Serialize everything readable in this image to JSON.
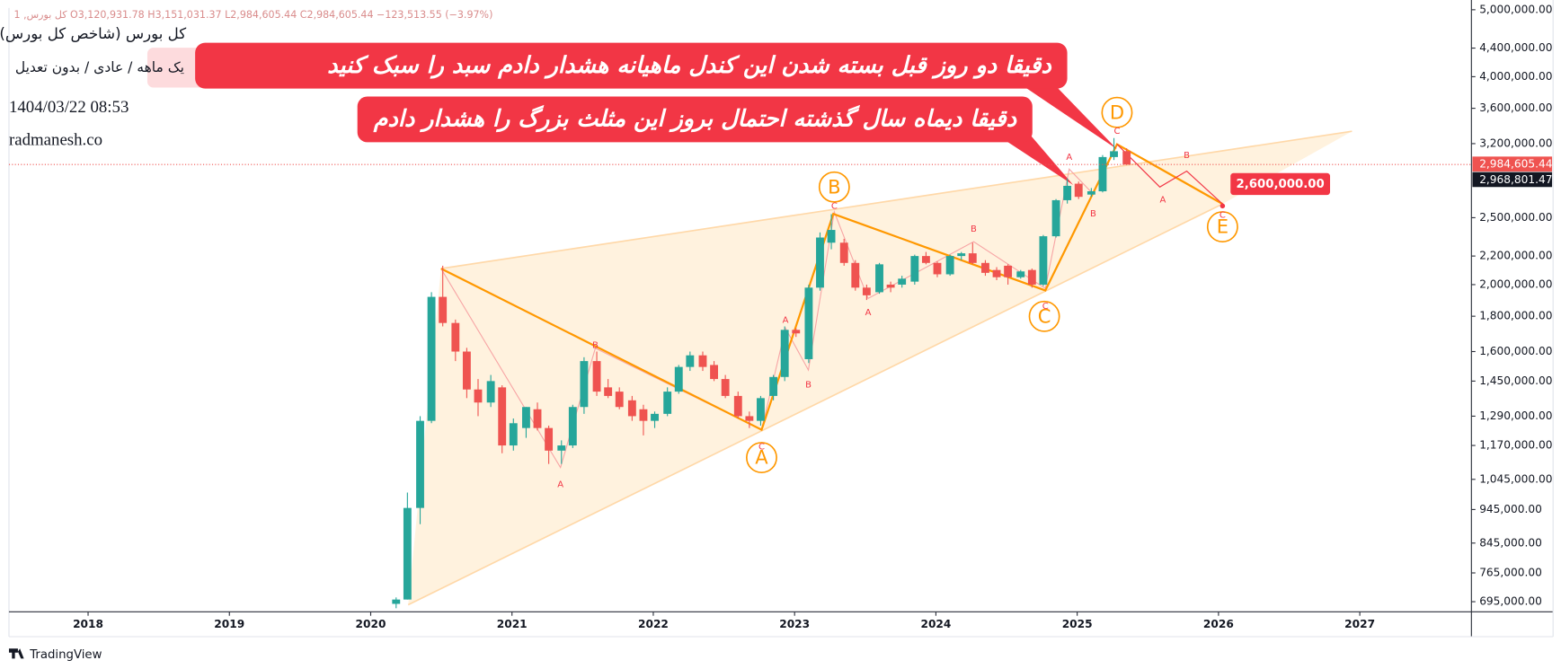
{
  "chart_data": {
    "type": "candlestick",
    "title": "کل بورس (شاخص کل بورس)",
    "subtitle": "یک ماهه / عادی / بدون تعدیل",
    "timestamp": "1404/03/22 08:53",
    "watermark": "radmanesh.co",
    "ohlc_line": "کل بورس, 1  O3,120,931.78  H3,151,031.37  L2,984,605.44  C2,984,605.44  −123,513.55 (−3.97%)",
    "branding": "TradingView",
    "up_color": "#26a69a",
    "down_color": "#ef5350",
    "log_scale": true,
    "x": [
      2020.18,
      2020.26,
      2020.35,
      2020.43,
      2020.51,
      2020.6,
      2020.68,
      2020.76,
      2020.85,
      2020.93,
      2021.01,
      2021.1,
      2021.18,
      2021.26,
      2021.35,
      2021.43,
      2021.51,
      2021.6,
      2021.68,
      2021.76,
      2021.85,
      2021.93,
      2022.01,
      2022.1,
      2022.18,
      2022.26,
      2022.35,
      2022.43,
      2022.51,
      2022.6,
      2022.68,
      2022.76,
      2022.85,
      2022.93,
      2023.01,
      2023.1,
      2023.18,
      2023.26,
      2023.35,
      2023.43,
      2023.51,
      2023.6,
      2023.68,
      2023.76,
      2023.85,
      2023.93,
      2024.01,
      2024.1,
      2024.18,
      2024.26,
      2024.35,
      2024.43,
      2024.51,
      2024.6,
      2024.68,
      2024.76,
      2024.85,
      2024.93,
      2025.01,
      2025.1,
      2025.18,
      2025.26,
      2025.35
    ],
    "open": [
      690000,
      700000,
      950000,
      1270000,
      1920000,
      1760000,
      1600000,
      1410000,
      1350000,
      1420000,
      1170000,
      1240000,
      1320000,
      1240000,
      1150000,
      1170000,
      1330000,
      1550000,
      1420000,
      1400000,
      1360000,
      1320000,
      1270000,
      1300000,
      1400000,
      1520000,
      1580000,
      1530000,
      1460000,
      1380000,
      1290000,
      1270000,
      1380000,
      1470000,
      1720000,
      1560000,
      1980000,
      2300000,
      2300000,
      2150000,
      1980000,
      1950000,
      2000000,
      2000000,
      2020000,
      2200000,
      2150000,
      2070000,
      2200000,
      2220000,
      2150000,
      2100000,
      2130000,
      2050000,
      2100000,
      2000000,
      2350000,
      2650000,
      2800000,
      2700000,
      2730000,
      3060000,
      3120931.78
    ],
    "high": [
      705000,
      1000000,
      1290000,
      1950000,
      2130000,
      1780000,
      1620000,
      1460000,
      1480000,
      1430000,
      1280000,
      1330000,
      1350000,
      1250000,
      1190000,
      1340000,
      1570000,
      1600000,
      1460000,
      1420000,
      1380000,
      1340000,
      1310000,
      1420000,
      1530000,
      1600000,
      1600000,
      1550000,
      1480000,
      1400000,
      1310000,
      1380000,
      1480000,
      1740000,
      1730000,
      2000000,
      2380000,
      2530000,
      2330000,
      2170000,
      2000000,
      2150000,
      2020000,
      2060000,
      2210000,
      2230000,
      2160000,
      2210000,
      2230000,
      2300000,
      2170000,
      2120000,
      2140000,
      2100000,
      2110000,
      2360000,
      2660000,
      2850000,
      2820000,
      2760000,
      3080000,
      3260000,
      3151031.37
    ],
    "low": [
      680000,
      700000,
      900000,
      1260000,
      1740000,
      1550000,
      1370000,
      1290000,
      1330000,
      1140000,
      1150000,
      1200000,
      1230000,
      1100000,
      1100000,
      1160000,
      1300000,
      1380000,
      1370000,
      1320000,
      1270000,
      1210000,
      1240000,
      1290000,
      1390000,
      1500000,
      1500000,
      1450000,
      1370000,
      1280000,
      1240000,
      1250000,
      1360000,
      1450000,
      1680000,
      1540000,
      1960000,
      2250000,
      2130000,
      1960000,
      1900000,
      1940000,
      1950000,
      1980000,
      2000000,
      2140000,
      2050000,
      2060000,
      2170000,
      2140000,
      2060000,
      2030000,
      2000000,
      2040000,
      1980000,
      1990000,
      2340000,
      2620000,
      2660000,
      2680000,
      2720000,
      3030000,
      2984605.44
    ],
    "close": [
      700000,
      950000,
      1270000,
      1920000,
      1760000,
      1600000,
      1410000,
      1350000,
      1450000,
      1170000,
      1260000,
      1330000,
      1240000,
      1150000,
      1170000,
      1330000,
      1550000,
      1400000,
      1380000,
      1330000,
      1290000,
      1270000,
      1300000,
      1400000,
      1520000,
      1580000,
      1520000,
      1460000,
      1380000,
      1290000,
      1270000,
      1370000,
      1470000,
      1720000,
      1700000,
      1980000,
      2340000,
      2400000,
      2150000,
      1980000,
      1930000,
      2140000,
      1980000,
      2040000,
      2200000,
      2150000,
      2070000,
      2200000,
      2220000,
      2150000,
      2080000,
      2050000,
      2050000,
      2090000,
      2000000,
      2350000,
      2650000,
      2780000,
      2680000,
      2730000,
      3060000,
      3120000,
      2984605.44
    ],
    "xlim": [
      2017.44,
      2027.79
    ],
    "xticks": [
      2018,
      2019,
      2020,
      2021,
      2022,
      2023,
      2024,
      2025,
      2026,
      2027
    ],
    "ylim": [
      672000,
      5030000
    ],
    "yticks": [
      {
        "value": 5000000,
        "label": "5,000,000.00"
      },
      {
        "value": 4400000,
        "label": "4,400,000.00"
      },
      {
        "value": 4000000,
        "label": "4,000,000.00"
      },
      {
        "value": 3600000,
        "label": "3,600,000.00"
      },
      {
        "value": 3200000,
        "label": "3,200,000.00"
      },
      {
        "value": 2500000,
        "label": "2,500,000.00"
      },
      {
        "value": 2200000,
        "label": "2,200,000.00"
      },
      {
        "value": 2000000,
        "label": "2,000,000.00"
      },
      {
        "value": 1800000,
        "label": "1,800,000.00"
      },
      {
        "value": 1600000,
        "label": "1,600,000.00"
      },
      {
        "value": 1450000,
        "label": "1,450,000.00"
      },
      {
        "value": 1290000,
        "label": "1,290,000.00"
      },
      {
        "value": 1170000,
        "label": "1,170,000.00"
      },
      {
        "value": 1045000,
        "label": "1,045,000.00"
      },
      {
        "value": 945000,
        "label": "945,000.00"
      },
      {
        "value": 845000,
        "label": "845,000.00"
      },
      {
        "value": 765000,
        "label": "765,000.00"
      },
      {
        "value": 695000,
        "label": "695,000.00"
      }
    ],
    "price_tags": [
      {
        "value": 2984605.44,
        "label": "2,984,605.44"
      },
      {
        "value": 2968801.47,
        "label": "2,968,801.47"
      },
      {
        "value": 2600000,
        "label": "2,600,000.00"
      }
    ],
    "annotations": [
      "دقیقا دو روز قبل بسته شدن این کندل ماهیانه هشدار دادم سبد را سبک کنید",
      "دقیقا دیماه سال گذشته احتمال بروز این مثلث بزرگ را هشدار دادم"
    ],
    "wave_labels": [
      "A",
      "B",
      "C",
      "D",
      "E"
    ],
    "minor_wave_labels": [
      "A",
      "B",
      "C",
      "A",
      "B",
      "C",
      "A",
      "B",
      "C",
      "A",
      "B",
      "C",
      "A",
      "B",
      "C"
    ]
  }
}
